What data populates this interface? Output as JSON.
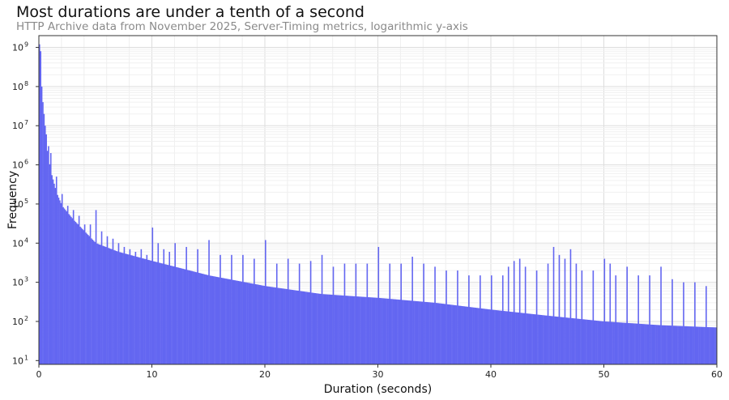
{
  "chart_data": {
    "type": "bar",
    "title": "Most durations are under a tenth of a second",
    "subtitle": "HTTP Archive data from November 2025, Server-Timing metrics, logarithmic y-axis",
    "xlabel": "Duration (seconds)",
    "ylabel": "Frequency",
    "xlim": [
      0,
      60
    ],
    "ylim": [
      8,
      2000000000
    ],
    "yscale": "log",
    "grid": true,
    "bar_color": "#6366f1",
    "x_ticks": [
      0,
      10,
      20,
      30,
      40,
      50,
      60
    ],
    "y_ticks": [
      {
        "value": 10,
        "base": "10",
        "exp": "1"
      },
      {
        "value": 100,
        "base": "10",
        "exp": "2"
      },
      {
        "value": 1000,
        "base": "10",
        "exp": "3"
      },
      {
        "value": 10000,
        "base": "10",
        "exp": "4"
      },
      {
        "value": 100000,
        "base": "10",
        "exp": "5"
      },
      {
        "value": 1000000,
        "base": "10",
        "exp": "6"
      },
      {
        "value": 10000000,
        "base": "10",
        "exp": "7"
      },
      {
        "value": 100000000,
        "base": "10",
        "exp": "8"
      },
      {
        "value": 1000000000,
        "base": "10",
        "exp": "9"
      }
    ],
    "bin_width": 0.1,
    "background_bins": [
      [
        0.0,
        1200000000
      ],
      [
        0.2,
        30000000
      ],
      [
        0.5,
        5000000
      ],
      [
        1.0,
        700000
      ],
      [
        1.5,
        200000
      ],
      [
        2.0,
        90000
      ],
      [
        3.0,
        40000
      ],
      [
        4.0,
        20000
      ],
      [
        5.0,
        10000
      ],
      [
        7.0,
        6000
      ],
      [
        10.0,
        3500
      ],
      [
        15.0,
        1500
      ],
      [
        20.0,
        800
      ],
      [
        25.0,
        500
      ],
      [
        30.0,
        400
      ],
      [
        35.0,
        300
      ],
      [
        40.0,
        200
      ],
      [
        45.0,
        140
      ],
      [
        50.0,
        100
      ],
      [
        55.0,
        80
      ],
      [
        60.0,
        70
      ]
    ],
    "spikes": [
      [
        0.1,
        800000000
      ],
      [
        0.2,
        100000000
      ],
      [
        0.3,
        40000000
      ],
      [
        0.4,
        20000000
      ],
      [
        0.5,
        10000000
      ],
      [
        0.6,
        6000000
      ],
      [
        0.8,
        3000000
      ],
      [
        1.0,
        2000000
      ],
      [
        1.5,
        500000
      ],
      [
        2.0,
        180000
      ],
      [
        2.5,
        90000
      ],
      [
        3.0,
        70000
      ],
      [
        3.5,
        50000
      ],
      [
        4.0,
        30000
      ],
      [
        4.5,
        30000
      ],
      [
        5.0,
        70000
      ],
      [
        5.5,
        20000
      ],
      [
        6.0,
        15000
      ],
      [
        6.5,
        13000
      ],
      [
        7.0,
        10000
      ],
      [
        7.5,
        8000
      ],
      [
        8.0,
        7000
      ],
      [
        8.5,
        6000
      ],
      [
        9.0,
        7000
      ],
      [
        9.5,
        5000
      ],
      [
        10.0,
        25000
      ],
      [
        10.5,
        10000
      ],
      [
        11.0,
        7000
      ],
      [
        11.5,
        6000
      ],
      [
        12.0,
        10000
      ],
      [
        13.0,
        8000
      ],
      [
        14.0,
        7000
      ],
      [
        15.0,
        12000
      ],
      [
        16.0,
        5000
      ],
      [
        17.0,
        5000
      ],
      [
        18.0,
        5000
      ],
      [
        19.0,
        4000
      ],
      [
        20.0,
        12000
      ],
      [
        21.0,
        3000
      ],
      [
        22.0,
        4000
      ],
      [
        23.0,
        3000
      ],
      [
        24.0,
        3500
      ],
      [
        25.0,
        5000
      ],
      [
        26.0,
        2500
      ],
      [
        27.0,
        3000
      ],
      [
        28.0,
        3000
      ],
      [
        29.0,
        3000
      ],
      [
        30.0,
        8000
      ],
      [
        31.0,
        3000
      ],
      [
        32.0,
        3000
      ],
      [
        33.0,
        4500
      ],
      [
        34.0,
        3000
      ],
      [
        35.0,
        2500
      ],
      [
        36.0,
        2000
      ],
      [
        37.0,
        2000
      ],
      [
        38.0,
        1500
      ],
      [
        39.0,
        1500
      ],
      [
        40.0,
        1500
      ],
      [
        41.0,
        1500
      ],
      [
        41.5,
        2500
      ],
      [
        42.0,
        3500
      ],
      [
        42.5,
        4000
      ],
      [
        43.0,
        2500
      ],
      [
        44.0,
        2000
      ],
      [
        45.0,
        3000
      ],
      [
        45.5,
        8000
      ],
      [
        46.0,
        5000
      ],
      [
        46.5,
        4000
      ],
      [
        47.0,
        7000
      ],
      [
        47.5,
        3000
      ],
      [
        48.0,
        2000
      ],
      [
        49.0,
        2000
      ],
      [
        50.0,
        4000
      ],
      [
        50.5,
        3000
      ],
      [
        51.0,
        1500
      ],
      [
        52.0,
        2500
      ],
      [
        53.0,
        1500
      ],
      [
        54.0,
        1500
      ],
      [
        55.0,
        2500
      ],
      [
        56.0,
        1200
      ],
      [
        57.0,
        1000
      ],
      [
        58.0,
        1000
      ],
      [
        59.0,
        800
      ],
      [
        60.0,
        700
      ]
    ]
  }
}
